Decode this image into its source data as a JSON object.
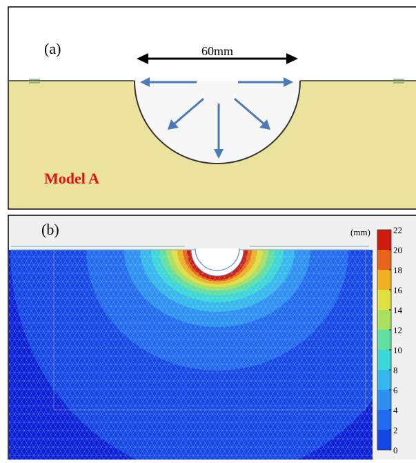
{
  "panel_a": {
    "label": "(a)",
    "dimension": "60mm",
    "model": "Model A"
  },
  "panel_b": {
    "label": "(b)",
    "unit": "(mm)",
    "colorbar": {
      "ticks": [
        0,
        2,
        4,
        6,
        8,
        10,
        12,
        14,
        16,
        18,
        20,
        22
      ],
      "colors": [
        "#0b1fd6",
        "#1446e6",
        "#1f6aee",
        "#2b90f2",
        "#33b8ee",
        "#3ad8d8",
        "#5fe0a0",
        "#a8e060",
        "#e0e040",
        "#f0b020",
        "#e86418",
        "#d01a10"
      ]
    }
  }
}
